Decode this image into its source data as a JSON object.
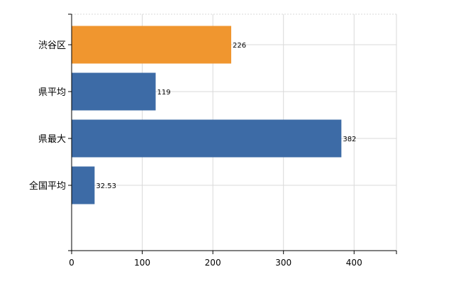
{
  "chart_data": {
    "type": "bar",
    "orientation": "horizontal",
    "categories": [
      "渋谷区",
      "県平均",
      "県最大",
      "全国平均"
    ],
    "values": [
      226,
      119,
      382,
      32.53
    ],
    "value_labels": [
      "226",
      "119",
      "382",
      "32.53"
    ],
    "xlim": [
      0,
      460
    ],
    "xticks": [
      0,
      100,
      200,
      300,
      400
    ],
    "xtick_labels": [
      "0",
      "100",
      "200",
      "300",
      "400"
    ],
    "grid": true,
    "legend": "none",
    "colors": {
      "highlight": "#f0962f",
      "default": "#3d6ba6",
      "grid": "#d9d9d9",
      "axis": "#000000"
    },
    "highlight_index": 0
  }
}
